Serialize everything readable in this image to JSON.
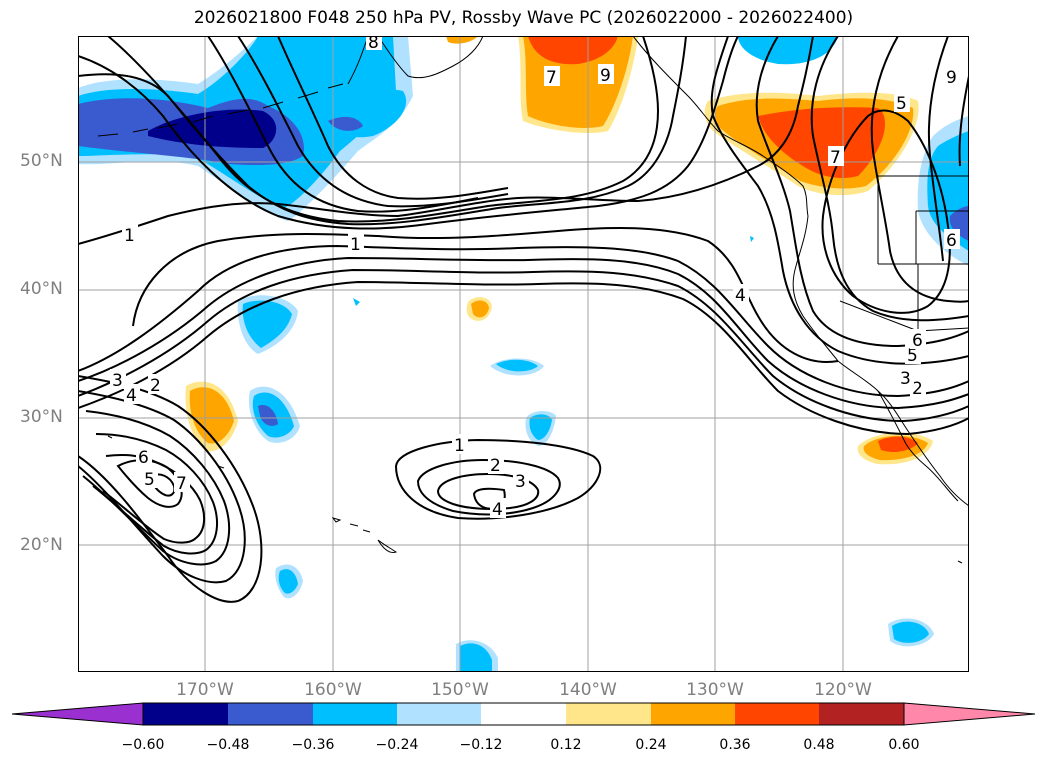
{
  "title": "2026021800 F048 250 hPa PV, Rossby Wave PC (2026022000 - 2026022400)",
  "lat_labels": [
    "50°N",
    "40°N",
    "30°N",
    "20°N"
  ],
  "lon_labels": [
    "170°W",
    "160°W",
    "150°W",
    "140°W",
    "130°W",
    "120°W"
  ],
  "colorbar": {
    "ticks": [
      "−0.60",
      "−0.48",
      "−0.36",
      "−0.24",
      "−0.12",
      "0.12",
      "0.24",
      "0.36",
      "0.48",
      "0.60"
    ],
    "colors": [
      "#9b30d0",
      "#00008b",
      "#3a5bd0",
      "#00bfff",
      "#b0e2ff",
      "#ffffff",
      "#ffe68a",
      "#ffa500",
      "#ff4500",
      "#b22222",
      "#ff88aa"
    ],
    "extend": "both"
  },
  "contour_labels": [
    "1",
    "1",
    "2",
    "3",
    "4",
    "5",
    "6",
    "7",
    "8",
    "9",
    "1",
    "2",
    "3",
    "4",
    "4",
    "5",
    "6",
    "2",
    "3",
    "5",
    "6",
    "7",
    "9",
    "7"
  ],
  "colors": {
    "contour": "#000000",
    "coast": "#000000",
    "grid": "#a0a0a0",
    "axis_text": "#7f7f7f"
  }
}
